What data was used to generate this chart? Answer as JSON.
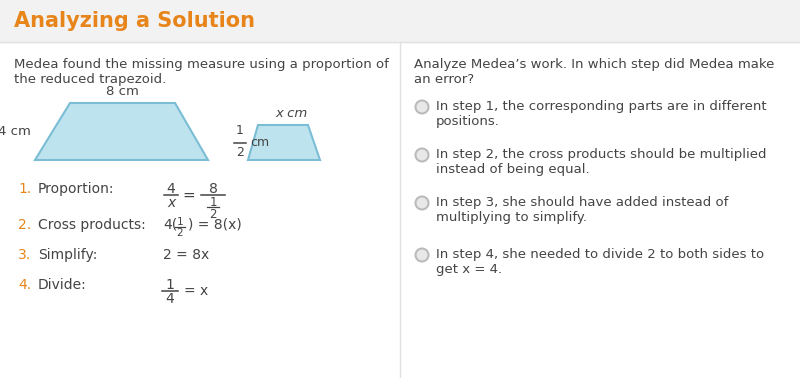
{
  "title": "Analyzing a Solution",
  "title_color": "#E8851A",
  "title_bg_top": "#F5F5F5",
  "title_bg_bottom": "#EBEBEB",
  "bg_color": "#FFFFFF",
  "left_intro_line1": "Medea found the missing measure using a proportion of",
  "left_intro_line2": "the reduced trapezoid.",
  "right_q_line1": "Analyze Medea’s work. In which step did Medea make",
  "right_q_line2": "an error?",
  "trap1_label_top": "8 cm",
  "trap1_label_side": "4 cm",
  "trap2_label_top": "x cm",
  "trap2_label_side_num": "1",
  "trap2_label_side_den": "2",
  "trap2_label_side_unit": "cm",
  "step_color": "#E8851A",
  "text_color": "#444444",
  "trapezoid_fill": "#BDE3EE",
  "trapezoid_edge": "#7BBDD4",
  "radio_fill": "#E8E8E8",
  "radio_edge": "#BBBBBB",
  "choices": [
    [
      "In step 1, the corresponding parts are in different",
      "positions."
    ],
    [
      "In step 2, the cross products should be multiplied",
      "instead of being equal."
    ],
    [
      "In step 3, she should have added instead of",
      "multiplying to simplify."
    ],
    [
      "In step 4, she needed to divide 2 to both sides to",
      "get x = 4."
    ]
  ]
}
